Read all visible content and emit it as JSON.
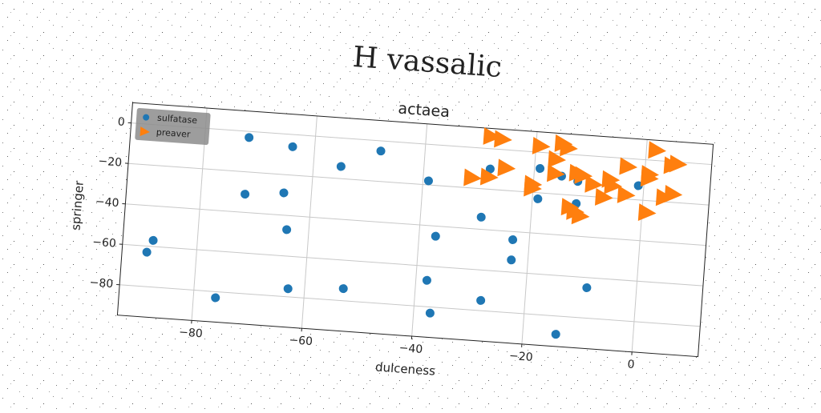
{
  "chart_data": {
    "type": "scatter",
    "suptitle": "H vassalic",
    "title": "actaea",
    "x_label": "dulceness",
    "y_label": "springer",
    "xlim": [
      -93.5,
      12
    ],
    "ylim": [
      -95,
      10
    ],
    "xticks": [
      {
        "value": -80,
        "label": "−80"
      },
      {
        "value": -60,
        "label": "−60"
      },
      {
        "value": -40,
        "label": "−40"
      },
      {
        "value": -20,
        "label": "−20"
      },
      0
    ],
    "yticks": [
      {
        "value": -80,
        "label": "−80"
      },
      {
        "value": -60,
        "label": "−60"
      },
      {
        "value": -40,
        "label": "−40"
      },
      {
        "value": -20,
        "label": "−20"
      },
      0
    ],
    "grid": true,
    "legend": "upper left",
    "series": [
      {
        "name": "sulfatase",
        "color": "#1f77b4",
        "marker": "circle",
        "x": [
          -72,
          -64,
          -55,
          -48,
          -72,
          -65,
          -64,
          -88,
          -89,
          -76,
          -63,
          -53,
          -39,
          -37,
          -38,
          -37,
          -29,
          -28,
          -28,
          -23,
          -23,
          -19,
          -19,
          -14,
          -9,
          -15,
          -12,
          -12,
          -1
        ],
        "y": [
          -3,
          -6,
          -14,
          -5,
          -31,
          -29,
          -47,
          -57,
          -63,
          -83,
          -76,
          -74,
          -18,
          -45,
          -67,
          -83,
          -34,
          -75,
          -10,
          -44,
          -54,
          -23,
          -8,
          -89,
          -65,
          -11,
          -24,
          -13,
          -13
        ]
      },
      {
        "name": "preaver",
        "color": "#ff7f0e",
        "marker": "triangle-right",
        "x": [
          -28,
          -26,
          -19,
          -15,
          -14,
          -16,
          -25,
          -31,
          -28,
          -20,
          -20,
          -16,
          -12,
          -11,
          -9,
          -6,
          -5.5,
          -7,
          -3,
          -3,
          2,
          1,
          1,
          5,
          6,
          4,
          5.5,
          1,
          -13,
          -12,
          -11
        ],
        "y": [
          6,
          5,
          3,
          5,
          3,
          -3,
          -9,
          -15,
          -14,
          -16,
          -18,
          -10,
          -9,
          -10,
          -14,
          -11,
          -14,
          -20,
          -4,
          -18,
          5,
          -7,
          -9,
          -2,
          -1,
          -18,
          -16,
          -26,
          -26,
          -28,
          -30
        ]
      }
    ]
  }
}
